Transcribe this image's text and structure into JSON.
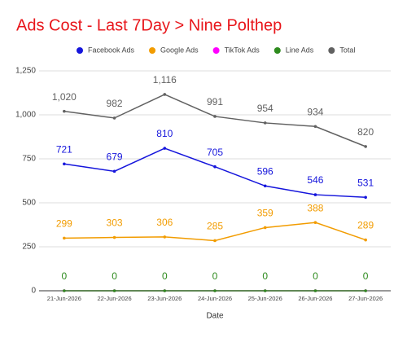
{
  "chart_data": {
    "type": "line",
    "title": "Ads Cost - Last 7Day > Nine Polthep",
    "title_color": "#e8161b",
    "x_label": "Date",
    "categories": [
      "21-Jun-2026",
      "22-Jun-2026",
      "23-Jun-2026",
      "24-Jun-2026",
      "25-Jun-2026",
      "26-Jun-2026",
      "27-Jun-2026"
    ],
    "series": [
      {
        "name": "Facebook Ads",
        "color": "#1515dc",
        "values": [
          721,
          679,
          810,
          705,
          596,
          546,
          531
        ],
        "labels": true
      },
      {
        "name": "Google Ads",
        "color": "#f29c00",
        "values": [
          299,
          303,
          306,
          285,
          359,
          388,
          289
        ],
        "labels": true
      },
      {
        "name": "TikTok Ads",
        "color": "#ff00ff",
        "values": [
          0,
          0,
          0,
          0,
          0,
          0,
          0
        ],
        "labels": false
      },
      {
        "name": "Line Ads",
        "color": "#2e8b1e",
        "values": [
          0,
          0,
          0,
          0,
          0,
          0,
          0
        ],
        "labels": true
      },
      {
        "name": "Total",
        "color": "#616161",
        "values": [
          1020,
          982,
          1116,
          991,
          954,
          934,
          820
        ],
        "value_labels": [
          "1,020",
          "982",
          "1,116",
          "991",
          "954",
          "934",
          "820"
        ],
        "labels": true
      }
    ],
    "ylim": [
      0,
      1250
    ],
    "yticks": [
      0,
      250,
      500,
      750,
      {
        "value": 1000,
        "label": "1,000"
      },
      {
        "value": 1250,
        "label": "1,250"
      }
    ],
    "grid": true,
    "legend": "top"
  }
}
